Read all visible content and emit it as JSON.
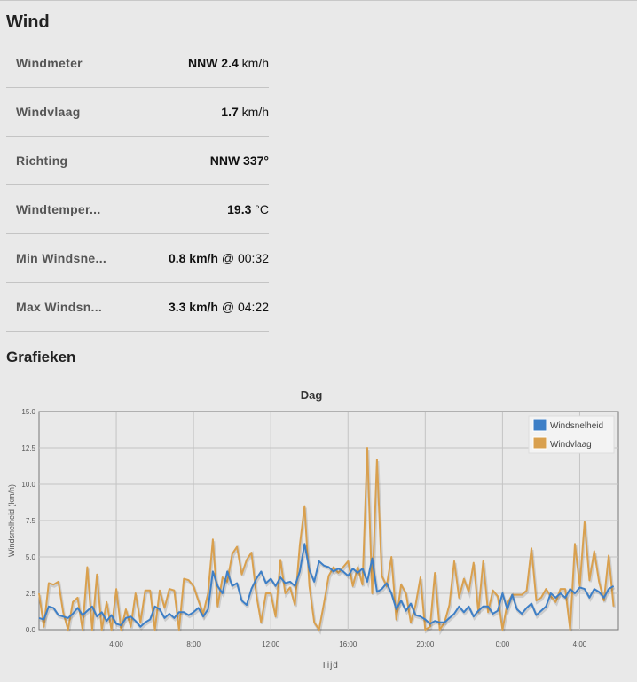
{
  "page": {
    "title": "Wind",
    "charts_heading": "Grafieken"
  },
  "metrics": [
    {
      "label": "Windmeter",
      "value_bold": "NNW 2.4",
      "value_rest": " km/h"
    },
    {
      "label": "Windvlaag",
      "value_bold": "1.7",
      "value_rest": " km/h"
    },
    {
      "label": "Richting",
      "value_bold": "NNW 337°",
      "value_rest": ""
    },
    {
      "label": "Windtemper...",
      "value_bold": "19.3",
      "value_rest": " °C"
    },
    {
      "label": "Min Windsne...",
      "value_bold": "0.8 km/h",
      "value_rest": " @ 00:32"
    },
    {
      "label": "Max Windsn...",
      "value_bold": "3.3 km/h",
      "value_rest": " @ 04:22"
    }
  ],
  "chart_data": {
    "type": "line",
    "title": "Dag",
    "xlabel": "Tijd",
    "ylabel": "Windsnelheid (km/h)",
    "ylim": [
      0,
      15
    ],
    "yticks": [
      "0.0",
      "2.5",
      "5.0",
      "7.5",
      "10.0",
      "12.5",
      "15.0"
    ],
    "xlim": [
      0,
      30
    ],
    "xticks": [
      {
        "x": 4,
        "label": "4:00"
      },
      {
        "x": 8,
        "label": "8:00"
      },
      {
        "x": 12,
        "label": "12:00"
      },
      {
        "x": 16,
        "label": "16:00"
      },
      {
        "x": 20,
        "label": "20:00"
      },
      {
        "x": 24,
        "label": "0:00"
      },
      {
        "x": 28,
        "label": "4:00"
      }
    ],
    "grid": true,
    "legend": "top-right",
    "colors": {
      "Windsnelheid": "#3d7fc7",
      "Windvlaag": "#d9a04e"
    },
    "series": [
      {
        "name": "Windsnelheid",
        "points": [
          [
            0,
            0.8
          ],
          [
            0.25,
            0.7
          ],
          [
            0.5,
            1.6
          ],
          [
            0.75,
            1.5
          ],
          [
            1,
            1.0
          ],
          [
            1.25,
            0.9
          ],
          [
            1.5,
            0.8
          ],
          [
            1.75,
            1.1
          ],
          [
            2,
            1.5
          ],
          [
            2.25,
            1.0
          ],
          [
            2.5,
            1.3
          ],
          [
            2.75,
            1.6
          ],
          [
            3,
            0.9
          ],
          [
            3.25,
            1.2
          ],
          [
            3.5,
            0.6
          ],
          [
            3.75,
            1.0
          ],
          [
            4,
            0.4
          ],
          [
            4.25,
            0.3
          ],
          [
            4.5,
            0.8
          ],
          [
            4.75,
            0.9
          ],
          [
            5,
            0.6
          ],
          [
            5.25,
            0.2
          ],
          [
            5.5,
            0.5
          ],
          [
            5.75,
            0.7
          ],
          [
            6,
            1.6
          ],
          [
            6.25,
            1.4
          ],
          [
            6.5,
            0.8
          ],
          [
            6.75,
            1.1
          ],
          [
            7,
            0.8
          ],
          [
            7.25,
            1.2
          ],
          [
            7.5,
            1.2
          ],
          [
            7.75,
            1.0
          ],
          [
            8,
            1.2
          ],
          [
            8.25,
            1.5
          ],
          [
            8.5,
            0.9
          ],
          [
            8.75,
            1.4
          ],
          [
            9,
            4.0
          ],
          [
            9.25,
            3.0
          ],
          [
            9.5,
            2.5
          ],
          [
            9.75,
            4.0
          ],
          [
            10,
            3.0
          ],
          [
            10.25,
            3.2
          ],
          [
            10.5,
            2.0
          ],
          [
            10.75,
            1.7
          ],
          [
            11,
            2.8
          ],
          [
            11.25,
            3.5
          ],
          [
            11.5,
            4.0
          ],
          [
            11.75,
            3.2
          ],
          [
            12,
            3.5
          ],
          [
            12.25,
            3.0
          ],
          [
            12.5,
            3.6
          ],
          [
            12.75,
            3.2
          ],
          [
            13,
            3.3
          ],
          [
            13.25,
            3.0
          ],
          [
            13.5,
            4.0
          ],
          [
            13.75,
            5.9
          ],
          [
            14,
            4.1
          ],
          [
            14.25,
            3.3
          ],
          [
            14.5,
            4.7
          ],
          [
            14.75,
            4.4
          ],
          [
            15,
            4.3
          ],
          [
            15.25,
            4.0
          ],
          [
            15.5,
            4.2
          ],
          [
            15.75,
            4.0
          ],
          [
            16,
            3.7
          ],
          [
            16.25,
            4.2
          ],
          [
            16.5,
            3.9
          ],
          [
            16.75,
            4.2
          ],
          [
            17,
            3.3
          ],
          [
            17.25,
            4.9
          ],
          [
            17.5,
            2.6
          ],
          [
            17.75,
            2.8
          ],
          [
            18,
            3.2
          ],
          [
            18.25,
            2.5
          ],
          [
            18.5,
            1.4
          ],
          [
            18.75,
            2.0
          ],
          [
            19,
            1.3
          ],
          [
            19.25,
            1.8
          ],
          [
            19.5,
            1.0
          ],
          [
            19.75,
            0.9
          ],
          [
            20,
            0.7
          ],
          [
            20.25,
            0.4
          ],
          [
            20.5,
            0.6
          ],
          [
            20.75,
            0.5
          ],
          [
            21,
            0.5
          ],
          [
            21.25,
            0.8
          ],
          [
            21.5,
            1.1
          ],
          [
            21.75,
            1.6
          ],
          [
            22,
            1.2
          ],
          [
            22.25,
            1.6
          ],
          [
            22.5,
            0.9
          ],
          [
            22.75,
            1.3
          ],
          [
            23,
            1.6
          ],
          [
            23.25,
            1.6
          ],
          [
            23.5,
            1.1
          ],
          [
            23.75,
            1.3
          ],
          [
            24,
            2.5
          ],
          [
            24.25,
            1.4
          ],
          [
            24.5,
            2.4
          ],
          [
            24.75,
            1.4
          ],
          [
            25,
            1.1
          ],
          [
            25.25,
            1.5
          ],
          [
            25.5,
            1.8
          ],
          [
            25.75,
            1.0
          ],
          [
            26,
            1.3
          ],
          [
            26.25,
            1.6
          ],
          [
            26.5,
            2.5
          ],
          [
            26.75,
            2.2
          ],
          [
            27,
            2.5
          ],
          [
            27.25,
            2.2
          ],
          [
            27.5,
            2.8
          ],
          [
            27.75,
            2.5
          ],
          [
            28,
            2.9
          ],
          [
            28.25,
            2.8
          ],
          [
            28.5,
            2.2
          ],
          [
            28.75,
            2.8
          ],
          [
            29,
            2.6
          ],
          [
            29.25,
            2.2
          ],
          [
            29.5,
            2.8
          ],
          [
            29.75,
            3.0
          ]
        ]
      },
      {
        "name": "Windvlaag",
        "points": [
          [
            0,
            2.5
          ],
          [
            0.25,
            0.2
          ],
          [
            0.5,
            3.2
          ],
          [
            0.75,
            3.1
          ],
          [
            1,
            3.3
          ],
          [
            1.25,
            1.2
          ],
          [
            1.5,
            0.0
          ],
          [
            1.75,
            1.9
          ],
          [
            2,
            2.2
          ],
          [
            2.25,
            0.0
          ],
          [
            2.5,
            4.3
          ],
          [
            2.75,
            0.0
          ],
          [
            3,
            3.8
          ],
          [
            3.25,
            0.0
          ],
          [
            3.5,
            1.9
          ],
          [
            3.75,
            0.0
          ],
          [
            4,
            2.8
          ],
          [
            4.25,
            0.0
          ],
          [
            4.5,
            1.4
          ],
          [
            4.75,
            0.2
          ],
          [
            5,
            2.5
          ],
          [
            5.25,
            0.5
          ],
          [
            5.5,
            2.7
          ],
          [
            5.75,
            2.7
          ],
          [
            6,
            0.0
          ],
          [
            6.25,
            2.7
          ],
          [
            6.5,
            1.5
          ],
          [
            6.75,
            2.8
          ],
          [
            7,
            2.7
          ],
          [
            7.25,
            0.0
          ],
          [
            7.5,
            3.5
          ],
          [
            7.75,
            3.4
          ],
          [
            8,
            3.0
          ],
          [
            8.25,
            2.0
          ],
          [
            8.5,
            1.1
          ],
          [
            8.75,
            2.5
          ],
          [
            9,
            6.2
          ],
          [
            9.25,
            1.6
          ],
          [
            9.5,
            3.6
          ],
          [
            9.75,
            3.3
          ],
          [
            10,
            5.2
          ],
          [
            10.25,
            5.7
          ],
          [
            10.5,
            3.8
          ],
          [
            10.75,
            4.8
          ],
          [
            11,
            5.3
          ],
          [
            11.25,
            2.4
          ],
          [
            11.5,
            0.5
          ],
          [
            11.75,
            2.5
          ],
          [
            12,
            2.5
          ],
          [
            12.25,
            0.9
          ],
          [
            12.5,
            4.8
          ],
          [
            12.75,
            2.5
          ],
          [
            13,
            2.9
          ],
          [
            13.25,
            1.7
          ],
          [
            13.5,
            5.8
          ],
          [
            13.75,
            8.5
          ],
          [
            14,
            3.0
          ],
          [
            14.25,
            0.5
          ],
          [
            14.5,
            0.0
          ],
          [
            14.75,
            1.8
          ],
          [
            15,
            3.7
          ],
          [
            15.25,
            4.3
          ],
          [
            15.5,
            3.9
          ],
          [
            15.75,
            4.3
          ],
          [
            16,
            4.7
          ],
          [
            16.25,
            3.0
          ],
          [
            16.5,
            4.3
          ],
          [
            16.75,
            3.1
          ],
          [
            17,
            12.5
          ],
          [
            17.25,
            2.5
          ],
          [
            17.5,
            11.7
          ],
          [
            17.75,
            3.7
          ],
          [
            18,
            3.0
          ],
          [
            18.25,
            5.0
          ],
          [
            18.5,
            0.7
          ],
          [
            18.75,
            3.1
          ],
          [
            19,
            2.5
          ],
          [
            19.25,
            0.5
          ],
          [
            19.5,
            1.7
          ],
          [
            19.75,
            3.6
          ],
          [
            20,
            0.0
          ],
          [
            20.25,
            0.2
          ],
          [
            20.5,
            3.9
          ],
          [
            20.75,
            0.0
          ],
          [
            21,
            0.5
          ],
          [
            21.25,
            1.7
          ],
          [
            21.5,
            4.7
          ],
          [
            21.75,
            2.2
          ],
          [
            22,
            3.5
          ],
          [
            22.25,
            2.6
          ],
          [
            22.5,
            4.6
          ],
          [
            22.75,
            1.2
          ],
          [
            23,
            4.7
          ],
          [
            23.25,
            1.2
          ],
          [
            23.5,
            2.7
          ],
          [
            23.75,
            2.3
          ],
          [
            24,
            0.0
          ],
          [
            24.25,
            1.8
          ],
          [
            24.5,
            2.4
          ],
          [
            24.75,
            2.4
          ],
          [
            25,
            2.4
          ],
          [
            25.25,
            2.7
          ],
          [
            25.5,
            5.6
          ],
          [
            25.75,
            2.0
          ],
          [
            26,
            2.2
          ],
          [
            26.25,
            2.8
          ],
          [
            26.5,
            2.3
          ],
          [
            26.75,
            1.9
          ],
          [
            27,
            2.8
          ],
          [
            27.25,
            2.8
          ],
          [
            27.5,
            0.0
          ],
          [
            27.75,
            5.9
          ],
          [
            28,
            3.0
          ],
          [
            28.25,
            7.4
          ],
          [
            28.5,
            3.4
          ],
          [
            28.75,
            5.4
          ],
          [
            29,
            3.3
          ],
          [
            29.25,
            2.0
          ],
          [
            29.5,
            5.1
          ],
          [
            29.75,
            1.6
          ]
        ]
      }
    ]
  }
}
